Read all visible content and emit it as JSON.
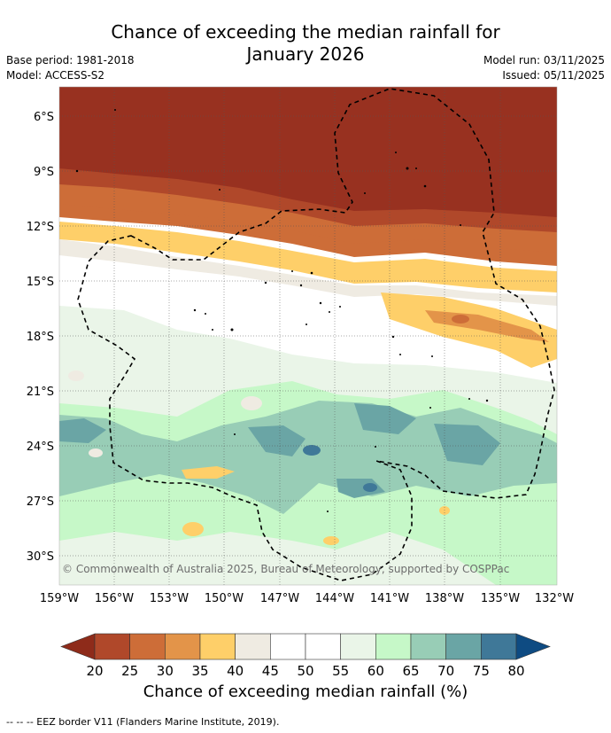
{
  "title_line1": "Chance of exceeding the median rainfall for",
  "title_line2": "January 2026",
  "base_period": "Base period: 1981-2018",
  "model": "Model: ACCESS-S2",
  "model_run": "Model run: 03/11/2025",
  "issued": "Issued: 05/11/2025",
  "copyright": "© Commonwealth of Australia 2025, Bureau of Meteorology, supported by COSPPac",
  "map": {
    "lat_labels": [
      "6°S",
      "9°S",
      "12°S",
      "15°S",
      "18°S",
      "21°S",
      "24°S",
      "27°S",
      "30°S"
    ],
    "lon_labels": [
      "159°W",
      "156°W",
      "153°W",
      "150°W",
      "147°W",
      "144°W",
      "141°W",
      "138°W",
      "135°W",
      "132°W"
    ]
  },
  "colorbar": {
    "ticks": [
      "20",
      "25",
      "30",
      "35",
      "40",
      "45",
      "50",
      "55",
      "60",
      "65",
      "70",
      "75",
      "80"
    ],
    "colors": [
      "#8e2b1a",
      "#b0482a",
      "#cd6d38",
      "#e39449",
      "#fecf69",
      "#efebe2",
      "#ffffff",
      "#ffffff",
      "#eaf5e8",
      "#c6f8c8",
      "#98cdb6",
      "#6aa5a5",
      "#3f7898",
      "#0e4b82"
    ],
    "label": "Chance of exceeding median rainfall (%)"
  },
  "footer": "--  --  -- EEZ border V11 (Flanders Marine Institute, 2019)."
}
